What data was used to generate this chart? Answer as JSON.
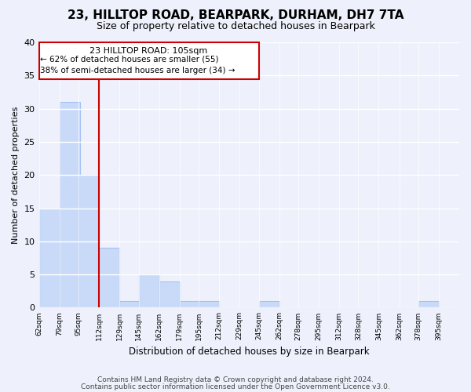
{
  "title": "23, HILLTOP ROAD, BEARPARK, DURHAM, DH7 7TA",
  "subtitle": "Size of property relative to detached houses in Bearpark",
  "xlabel": "Distribution of detached houses by size in Bearpark",
  "ylabel": "Number of detached properties",
  "bins": [
    62,
    79,
    95,
    112,
    129,
    145,
    162,
    179,
    195,
    212,
    229,
    245,
    262,
    278,
    295,
    312,
    328,
    345,
    362,
    378,
    395
  ],
  "counts": [
    15,
    31,
    20,
    9,
    1,
    5,
    4,
    1,
    1,
    0,
    0,
    1,
    0,
    0,
    0,
    0,
    0,
    0,
    0,
    1,
    0
  ],
  "tick_labels": [
    "62sqm",
    "79sqm",
    "95sqm",
    "112sqm",
    "129sqm",
    "145sqm",
    "162sqm",
    "179sqm",
    "195sqm",
    "212sqm",
    "229sqm",
    "245sqm",
    "262sqm",
    "278sqm",
    "295sqm",
    "312sqm",
    "328sqm",
    "345sqm",
    "362sqm",
    "378sqm",
    "395sqm"
  ],
  "bar_color": "#c9daf8",
  "bar_edge_color": "#a4c2f4",
  "property_line_color": "#cc0000",
  "ylim": [
    0,
    40
  ],
  "yticks": [
    0,
    5,
    10,
    15,
    20,
    25,
    30,
    35,
    40
  ],
  "annotation_title": "23 HILLTOP ROAD: 105sqm",
  "annotation_line1": "← 62% of detached houses are smaller (55)",
  "annotation_line2": "38% of semi-detached houses are larger (34) →",
  "annotation_box_color": "#ffffff",
  "annotation_box_edge": "#cc0000",
  "footer1": "Contains HM Land Registry data © Crown copyright and database right 2024.",
  "footer2": "Contains public sector information licensed under the Open Government Licence v3.0.",
  "bg_color": "#eef1fb",
  "plot_bg_color": "#eef1fb",
  "grid_color": "#ffffff"
}
